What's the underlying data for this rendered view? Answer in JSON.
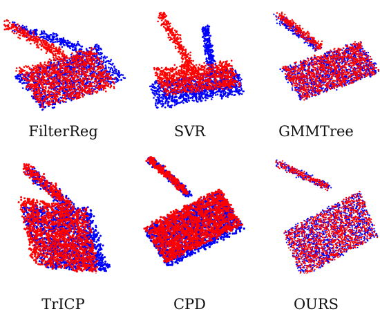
{
  "colors": {
    "source": "#ff0000",
    "target": "#0000ff",
    "background": "#ffffff"
  },
  "panels": [
    {
      "method": "FilterReg"
    },
    {
      "method": "SVR"
    },
    {
      "method": "GMMTree"
    },
    {
      "method": "TrICP"
    },
    {
      "method": "CPD"
    },
    {
      "method": "OURS"
    }
  ]
}
